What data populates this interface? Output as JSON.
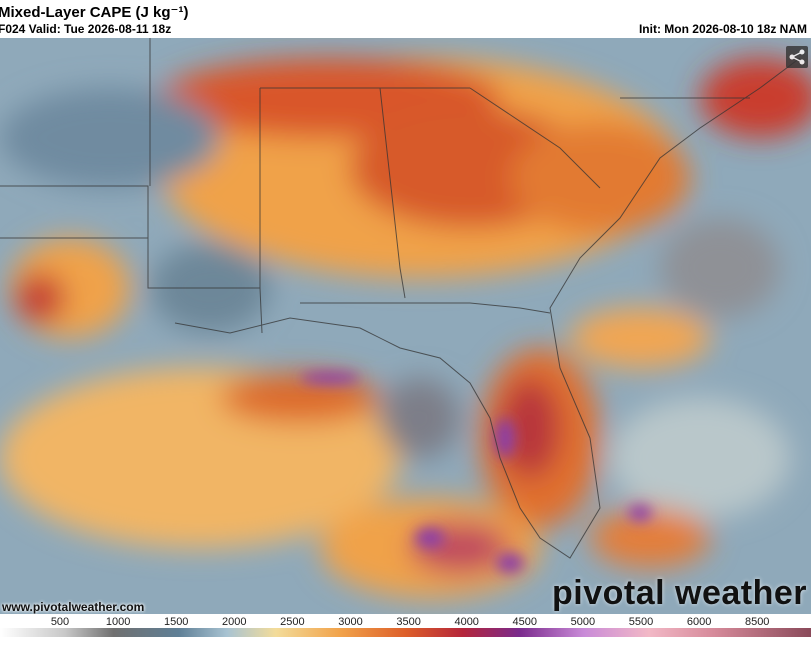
{
  "header": {
    "title": "Mixed-Layer CAPE (J kg⁻¹)",
    "valid": "F024 Valid: Tue 2026-08-11 18z",
    "init": "Init: Mon 2026-08-10 18z NAM"
  },
  "footer": {
    "url": "www.pivotalweather.com",
    "logo": "pivotal weather"
  },
  "colorbar": {
    "labels": [
      500,
      1000,
      1500,
      2000,
      2500,
      3000,
      3500,
      4000,
      4500,
      5000,
      5500,
      6000,
      8500
    ]
  }
}
